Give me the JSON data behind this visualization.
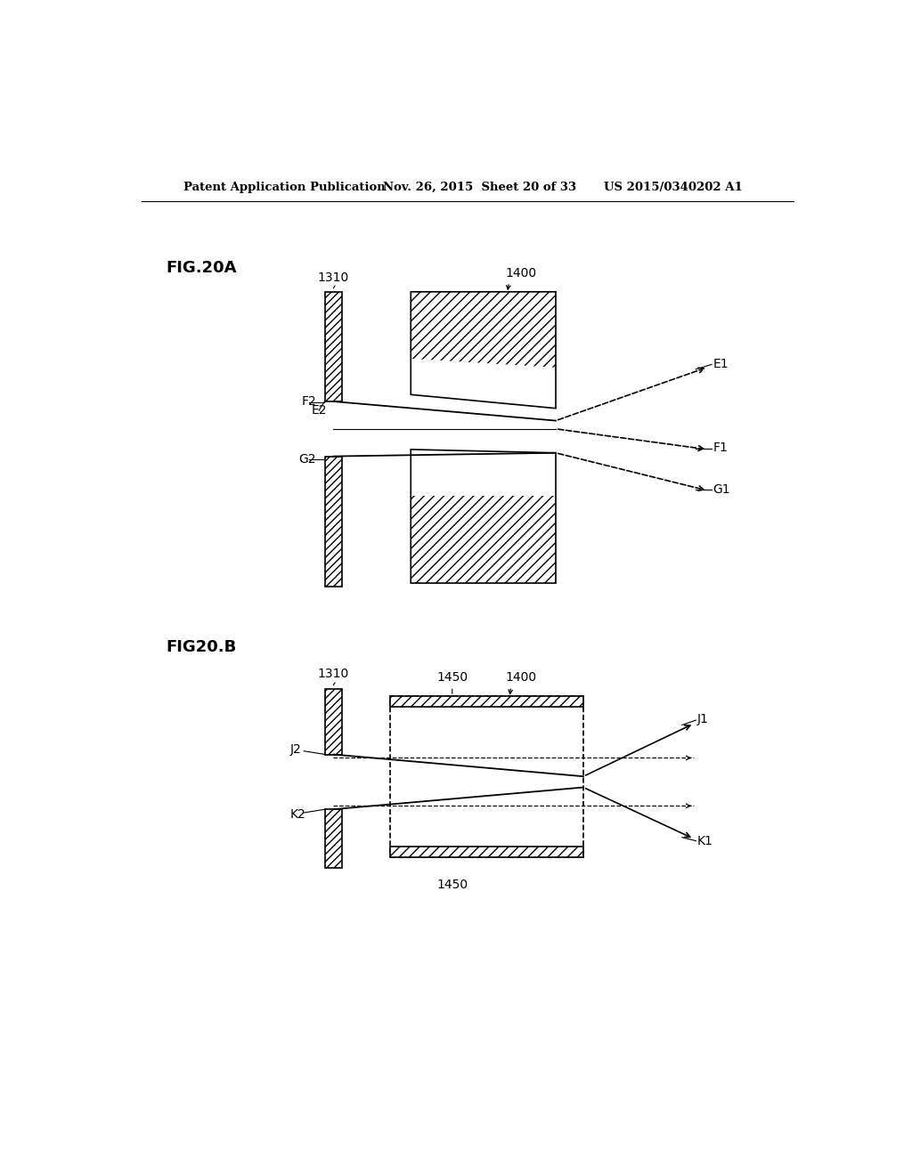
{
  "bg_color": "#ffffff",
  "header_left": "Patent Application Publication",
  "header_mid": "Nov. 26, 2015  Sheet 20 of 33",
  "header_right": "US 2015/0340202 A1",
  "fig_a_label": "FIG.20A",
  "fig_b_label": "FIG20.B",
  "label_1310_a": "1310",
  "label_1400_a": "1400",
  "label_E2": "E2",
  "label_F2": "F2",
  "label_G2": "G2",
  "label_E1": "E1",
  "label_F1": "F1",
  "label_G1": "G1",
  "label_1310_b": "1310",
  "label_1400_b": "1400",
  "label_1450_top": "1450",
  "label_1450_bot": "1450",
  "label_J2": "J2",
  "label_K2": "K2",
  "label_J1": "J1",
  "label_K1": "K1"
}
